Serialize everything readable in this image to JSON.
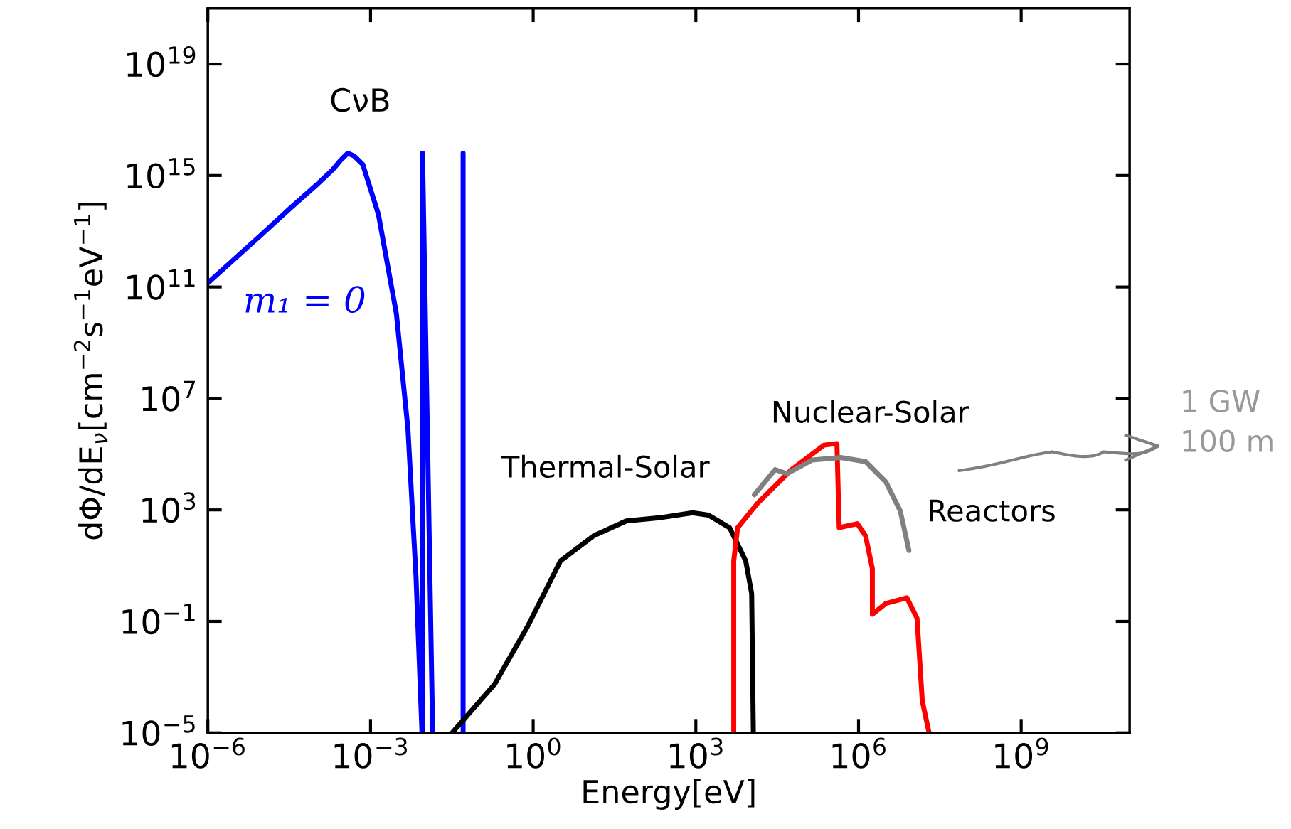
{
  "chart_data": {
    "type": "line",
    "xlabel": "Energy[eV]",
    "ylabel": "dΦ/dE$_{ν}$[cm$^{−2}$s$^{−1}$eV$^{−1}$]",
    "log": "xy",
    "xlim": [
      1e-06,
      100000000000.0
    ],
    "ylim": [
      1e-05,
      1e+21
    ],
    "xticks": [
      {
        "value": 1e-06,
        "label": "10$^{−6}$"
      },
      {
        "value": 0.001,
        "label": "10$^{−3}$"
      },
      {
        "value": 1,
        "label": "10$^{0}$"
      },
      {
        "value": 1000.0,
        "label": "10$^{3}$"
      },
      {
        "value": 1000000.0,
        "label": "10$^{6}$"
      },
      {
        "value": 1000000000.0,
        "label": "10$^{9}$"
      }
    ],
    "yticks": [
      {
        "value": 1e-05,
        "label": "10$^{−5}$"
      },
      {
        "value": 0.1,
        "label": "10$^{−1}$"
      },
      {
        "value": 1000.0,
        "label": "10$^{3}$"
      },
      {
        "value": 10000000.0,
        "label": "10$^{7}$"
      },
      {
        "value": 100000000000.0,
        "label": "10$^{11}$"
      },
      {
        "value": 1000000000000000.0,
        "label": "10$^{15}$"
      },
      {
        "value": 1e+19,
        "label": "10$^{19}$"
      }
    ],
    "grid": false,
    "series": [
      {
        "color": "#0000ff",
        "x": [
          1e-06,
          1e-05,
          3.2e-05,
          0.0001,
          0.0002,
          0.00028,
          0.00038,
          0.0005,
          0.00072,
          0.0014,
          0.003,
          0.0049,
          0.0069,
          0.0089
        ],
        "values": [
          140000000000.0,
          7900000000000.0,
          63000000000000.0,
          450000000000000.0,
          1600000000000000.0,
          3500000000000000.0,
          6300000000000000.0,
          5000000000000000.0,
          2500000000000000.0,
          40000000000000.0,
          11000000000.0,
          800000.0,
          4,
          1e-05
        ]
      },
      {
        "color": "#0000ff",
        "x": [
          0.0091,
          0.0091,
          0.014
        ],
        "values": [
          1e-05,
          6300000000000000.0,
          1e-05
        ]
      },
      {
        "color": "#0000ff",
        "x": [
          0.051,
          0.051
        ],
        "values": [
          1e-05,
          6300000000000000.0
        ]
      },
      {
        "color": "#000000",
        "x": [
          0.032,
          0.195,
          0.79,
          3.2,
          13,
          52,
          210,
          870,
          1700,
          4200,
          8300,
          10700,
          11500
        ],
        "values": [
          1e-05,
          0.00056,
          0.066,
          15,
          117,
          400,
          520,
          790,
          650,
          230,
          15,
          1,
          1e-05
        ]
      },
      {
        "color": "#ff0000",
        "x": [
          5000,
          5000,
          5900,
          14000,
          58000,
          230000,
          400000,
          440000,
          950000,
          1350000,
          1800000,
          1800000,
          3200000,
          7800000,
          12000000,
          15000000,
          20000000
        ],
        "values": [
          1e-05,
          15,
          230,
          1800,
          28000,
          210000,
          240000,
          230,
          320,
          117,
          7.8,
          0.18,
          0.44,
          0.7,
          0.13,
          0.00014,
          1e-05
        ]
      },
      {
        "color": "#808080",
        "x": [
          12000,
          29000,
          48000,
          140000,
          470000,
          1350000,
          3200000,
          5900000,
          8500000
        ],
        "values": [
          3500,
          28000,
          20000,
          62000,
          76000,
          54000,
          10000,
          910,
          35
        ]
      }
    ],
    "annotations": [
      "CνB",
      "m₁ = 0",
      "Thermal-Solar",
      "Nuclear-Solar",
      "Reactors",
      "1 GW\n100 m"
    ]
  }
}
